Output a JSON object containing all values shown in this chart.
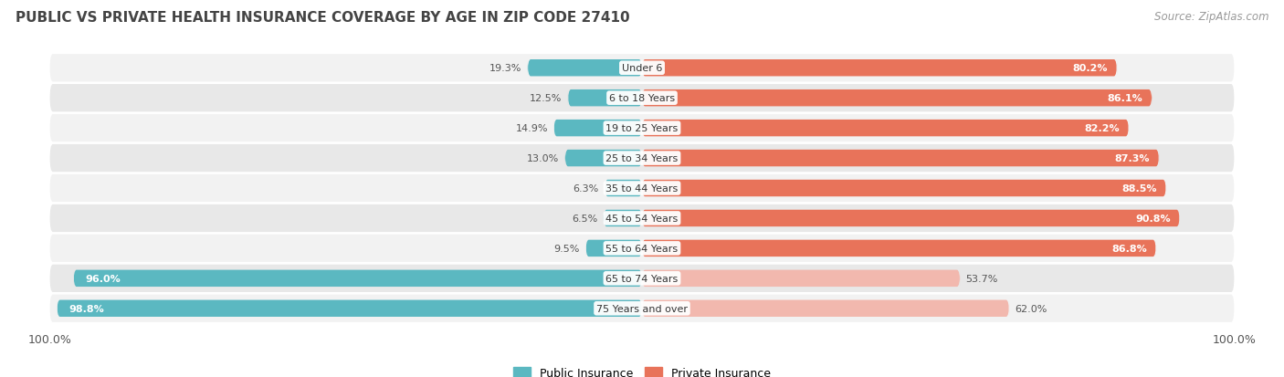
{
  "title": "PUBLIC VS PRIVATE HEALTH INSURANCE COVERAGE BY AGE IN ZIP CODE 27410",
  "source": "Source: ZipAtlas.com",
  "categories": [
    "Under 6",
    "6 to 18 Years",
    "19 to 25 Years",
    "25 to 34 Years",
    "35 to 44 Years",
    "45 to 54 Years",
    "55 to 64 Years",
    "65 to 74 Years",
    "75 Years and over"
  ],
  "public_values": [
    19.3,
    12.5,
    14.9,
    13.0,
    6.3,
    6.5,
    9.5,
    96.0,
    98.8
  ],
  "private_values": [
    80.2,
    86.1,
    82.2,
    87.3,
    88.5,
    90.8,
    86.8,
    53.7,
    62.0
  ],
  "public_color": "#5BB8C1",
  "private_color_strong": "#E8735A",
  "private_color_light": "#F2B8AE",
  "title_color": "#444444",
  "label_fontsize": 8.0,
  "title_fontsize": 11,
  "legend_fontsize": 9,
  "row_bg_even": "#F2F2F2",
  "row_bg_odd": "#E8E8E8"
}
